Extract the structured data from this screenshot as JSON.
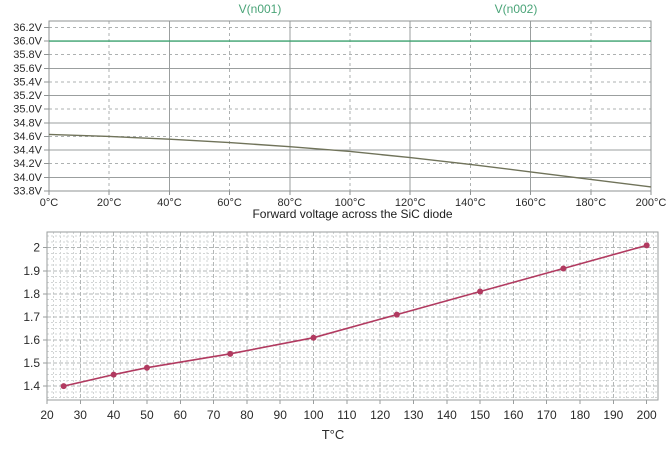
{
  "page": {
    "background": "#ffffff"
  },
  "chart_data": [
    {
      "type": "line",
      "title": "",
      "legend_entries": [
        "V(n001)",
        "V(n002)"
      ],
      "legend_position": "top",
      "legend_color": "#4aa478",
      "x_unit": "°C",
      "y_unit": "V",
      "xlim": [
        0,
        200
      ],
      "ylim": [
        33.8,
        36.3
      ],
      "x_tick_values": [
        0,
        20,
        40,
        60,
        80,
        100,
        120,
        140,
        160,
        180,
        200
      ],
      "x_tick_labels": [
        "0°C",
        "20°C",
        "40°C",
        "60°C",
        "80°C",
        "100°C",
        "120°C",
        "140°C",
        "160°C",
        "180°C",
        "200°C"
      ],
      "y_tick_values": [
        36.2,
        36.0,
        35.8,
        35.6,
        35.4,
        35.2,
        35.0,
        34.8,
        34.6,
        34.4,
        34.2,
        34.0,
        33.8
      ],
      "y_tick_labels": [
        "36.2V",
        "36.0V",
        "35.8V",
        "35.6V",
        "35.4V",
        "35.2V",
        "35.0V",
        "34.8V",
        "34.6V",
        "34.4V",
        "34.2V",
        "34.0V",
        "33.8V"
      ],
      "grid": {
        "x_step": 20,
        "y_step": 0.2,
        "style": "solid line every 40°C / 0.4V, dashed between"
      },
      "series": [
        {
          "name": "V(n001)",
          "color": "#70735a",
          "marker": "none",
          "x": [
            0,
            20,
            40,
            60,
            80,
            100,
            120,
            140,
            160,
            180,
            200
          ],
          "values": [
            34.63,
            34.6,
            34.56,
            34.51,
            34.45,
            34.38,
            34.29,
            34.19,
            34.08,
            33.97,
            33.86
          ]
        },
        {
          "name": "V(n002)",
          "color": "#3aa06e",
          "marker": "none",
          "x": [
            0,
            200
          ],
          "values": [
            36.0,
            36.0
          ]
        }
      ]
    },
    {
      "type": "line",
      "title": "Forward voltage across the SiC diode",
      "xlabel": "T°C",
      "ylabel": "",
      "xlim": [
        20,
        203
      ],
      "ylim": [
        1.34,
        2.07
      ],
      "x_tick_values": [
        20,
        30,
        40,
        50,
        60,
        70,
        80,
        90,
        100,
        110,
        120,
        130,
        140,
        150,
        160,
        170,
        180,
        190,
        200
      ],
      "x_tick_labels": [
        "20",
        "30",
        "40",
        "50",
        "60",
        "70",
        "80",
        "90",
        "100",
        "110",
        "120",
        "130",
        "140",
        "150",
        "160",
        "170",
        "180",
        "190",
        "200"
      ],
      "y_tick_values": [
        2.0,
        1.9,
        1.8,
        1.7,
        1.6,
        1.5,
        1.4
      ],
      "y_tick_labels": [
        "2",
        "1.9",
        "1.8",
        "1.7",
        "1.6",
        "1.5",
        "1.4"
      ],
      "grid": {
        "major_x_step": 10,
        "major_y_step": 0.1,
        "minor_x_step": 2,
        "minor_y_step": 0.025
      },
      "series": [
        {
          "name": "Forward voltage",
          "color": "#b13a60",
          "marker": "circle",
          "x": [
            25,
            40,
            50,
            75,
            100,
            125,
            150,
            175,
            200
          ],
          "values": [
            1.4,
            1.45,
            1.48,
            1.54,
            1.61,
            1.71,
            1.81,
            1.91,
            2.01
          ]
        }
      ]
    }
  ]
}
